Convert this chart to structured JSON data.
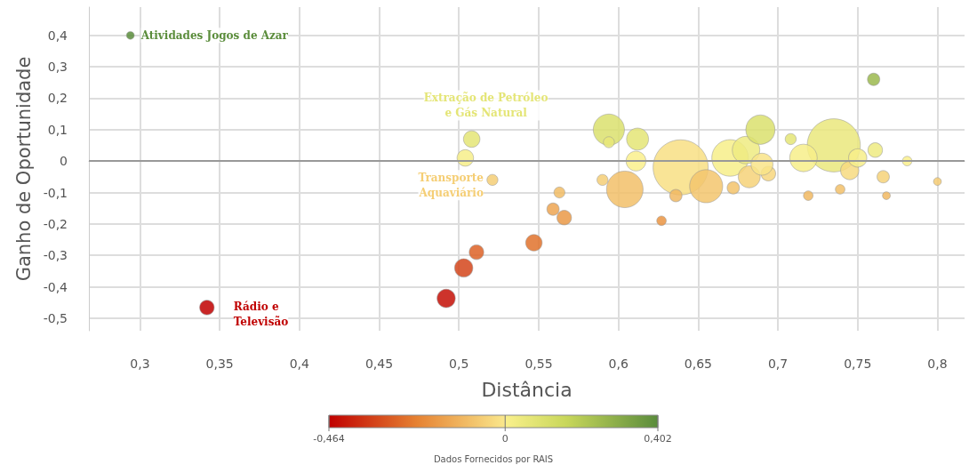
{
  "chart_data": {
    "type": "bubble",
    "xlabel": "Distância",
    "ylabel": "Ganho de Oportunidade",
    "x": [
      0.294,
      0.342,
      0.492,
      0.503,
      0.511,
      0.547,
      0.559,
      0.566,
      0.563,
      0.521,
      0.508,
      0.504,
      0.604,
      0.59,
      0.594,
      0.612,
      0.611,
      0.594,
      0.639,
      0.655,
      0.67,
      0.68,
      0.689,
      0.682,
      0.694,
      0.735,
      0.716,
      0.708,
      0.76,
      0.745,
      0.781,
      0.8,
      0.766,
      0.719,
      0.739,
      0.768,
      0.627,
      0.636,
      0.761,
      0.75,
      0.672,
      0.69
    ],
    "values": [
      0.4,
      -0.466,
      -0.437,
      -0.34,
      -0.29,
      -0.26,
      -0.153,
      -0.18,
      -0.1,
      -0.06,
      0.07,
      0.01,
      -0.09,
      -0.06,
      0.1,
      0.07,
      0.0,
      0.06,
      -0.02,
      -0.08,
      0.01,
      0.035,
      0.1,
      -0.05,
      -0.04,
      0.05,
      0.01,
      0.07,
      0.26,
      -0.03,
      0.0,
      -0.065,
      -0.05,
      -0.11,
      -0.09,
      -0.11,
      -0.19,
      -0.11,
      0.035,
      0.01,
      -0.085,
      -0.01
    ],
    "cvalues": [
      0.4,
      -0.466,
      -0.437,
      -0.34,
      -0.29,
      -0.26,
      -0.153,
      -0.18,
      -0.1,
      -0.06,
      0.07,
      0.01,
      -0.09,
      -0.06,
      0.1,
      0.07,
      0.0,
      0.06,
      -0.02,
      -0.08,
      0.01,
      0.035,
      0.1,
      -0.05,
      -0.04,
      0.05,
      0.01,
      0.07,
      0.26,
      -0.03,
      0.0,
      -0.065,
      -0.05,
      -0.11,
      -0.09,
      -0.11,
      -0.19,
      -0.11,
      0.035,
      0.01,
      -0.085,
      -0.01
    ],
    "sizes": [
      0.02,
      0.07,
      0.11,
      0.11,
      0.07,
      0.09,
      0.05,
      0.07,
      0.04,
      0.04,
      0.09,
      0.09,
      0.44,
      0.04,
      0.32,
      0.16,
      0.13,
      0.04,
      1,
      0.36,
      0.44,
      0.25,
      0.28,
      0.16,
      0.07,
      0.93,
      0.25,
      0.04,
      0.05,
      0.11,
      0.03,
      0.02,
      0.05,
      0.03,
      0.03,
      0.02,
      0.03,
      0.05,
      0.07,
      0.11,
      0.05,
      0.16
    ],
    "xlim": [
      0.268,
      0.817
    ],
    "ylim": [
      -0.54,
      0.49
    ],
    "xticks": [
      {
        "value": 0.3,
        "label": "0,3"
      },
      {
        "value": 0.35,
        "label": "0,35"
      },
      {
        "value": 0.4,
        "label": "0,4"
      },
      {
        "value": 0.45,
        "label": "0,45"
      },
      {
        "value": 0.5,
        "label": "0,5"
      },
      {
        "value": 0.55,
        "label": "0,55"
      },
      {
        "value": 0.6,
        "label": "0,6"
      },
      {
        "value": 0.65,
        "label": "0,65"
      },
      {
        "value": 0.7,
        "label": "0,7"
      },
      {
        "value": 0.75,
        "label": "0,75"
      },
      {
        "value": 0.8,
        "label": "0,8"
      }
    ],
    "yticks": [
      {
        "value": -0.5,
        "label": "-0,5"
      },
      {
        "value": -0.4,
        "label": "-0,4"
      },
      {
        "value": -0.3,
        "label": "-0,3"
      },
      {
        "value": -0.2,
        "label": "-0,2"
      },
      {
        "value": -0.1,
        "label": "-0,1"
      },
      0,
      {
        "value": 0.1,
        "label": "0,1"
      },
      {
        "value": 0.2,
        "label": "0,2"
      },
      {
        "value": 0.3,
        "label": "0,3"
      },
      {
        "value": 0.4,
        "label": "0,4"
      }
    ],
    "clim": [
      -0.464,
      0.402
    ],
    "cticks": [
      {
        "value": -0.464,
        "label": "-0,464"
      },
      0,
      {
        "value": 0.402,
        "label": "0,402"
      }
    ],
    "grid": true,
    "ref_lines": [
      {
        "axis": "y",
        "value": 0,
        "color": "#999999"
      }
    ],
    "annotations": [
      {
        "text": "Atividades Jogos de Azar",
        "x": 0.294,
        "y": 0.4
      },
      {
        "text": "Extração de Petróleo\ne Gás Natural",
        "x": 0.508,
        "y": 0.07
      },
      {
        "text": "Transporte\nAquaviário",
        "x": 0.521,
        "y": -0.06
      },
      {
        "text": "Rádio e\nTelevisão",
        "x": 0.342,
        "y": -0.466
      },
      "Dados Fornecidos por RAIS"
    ]
  }
}
